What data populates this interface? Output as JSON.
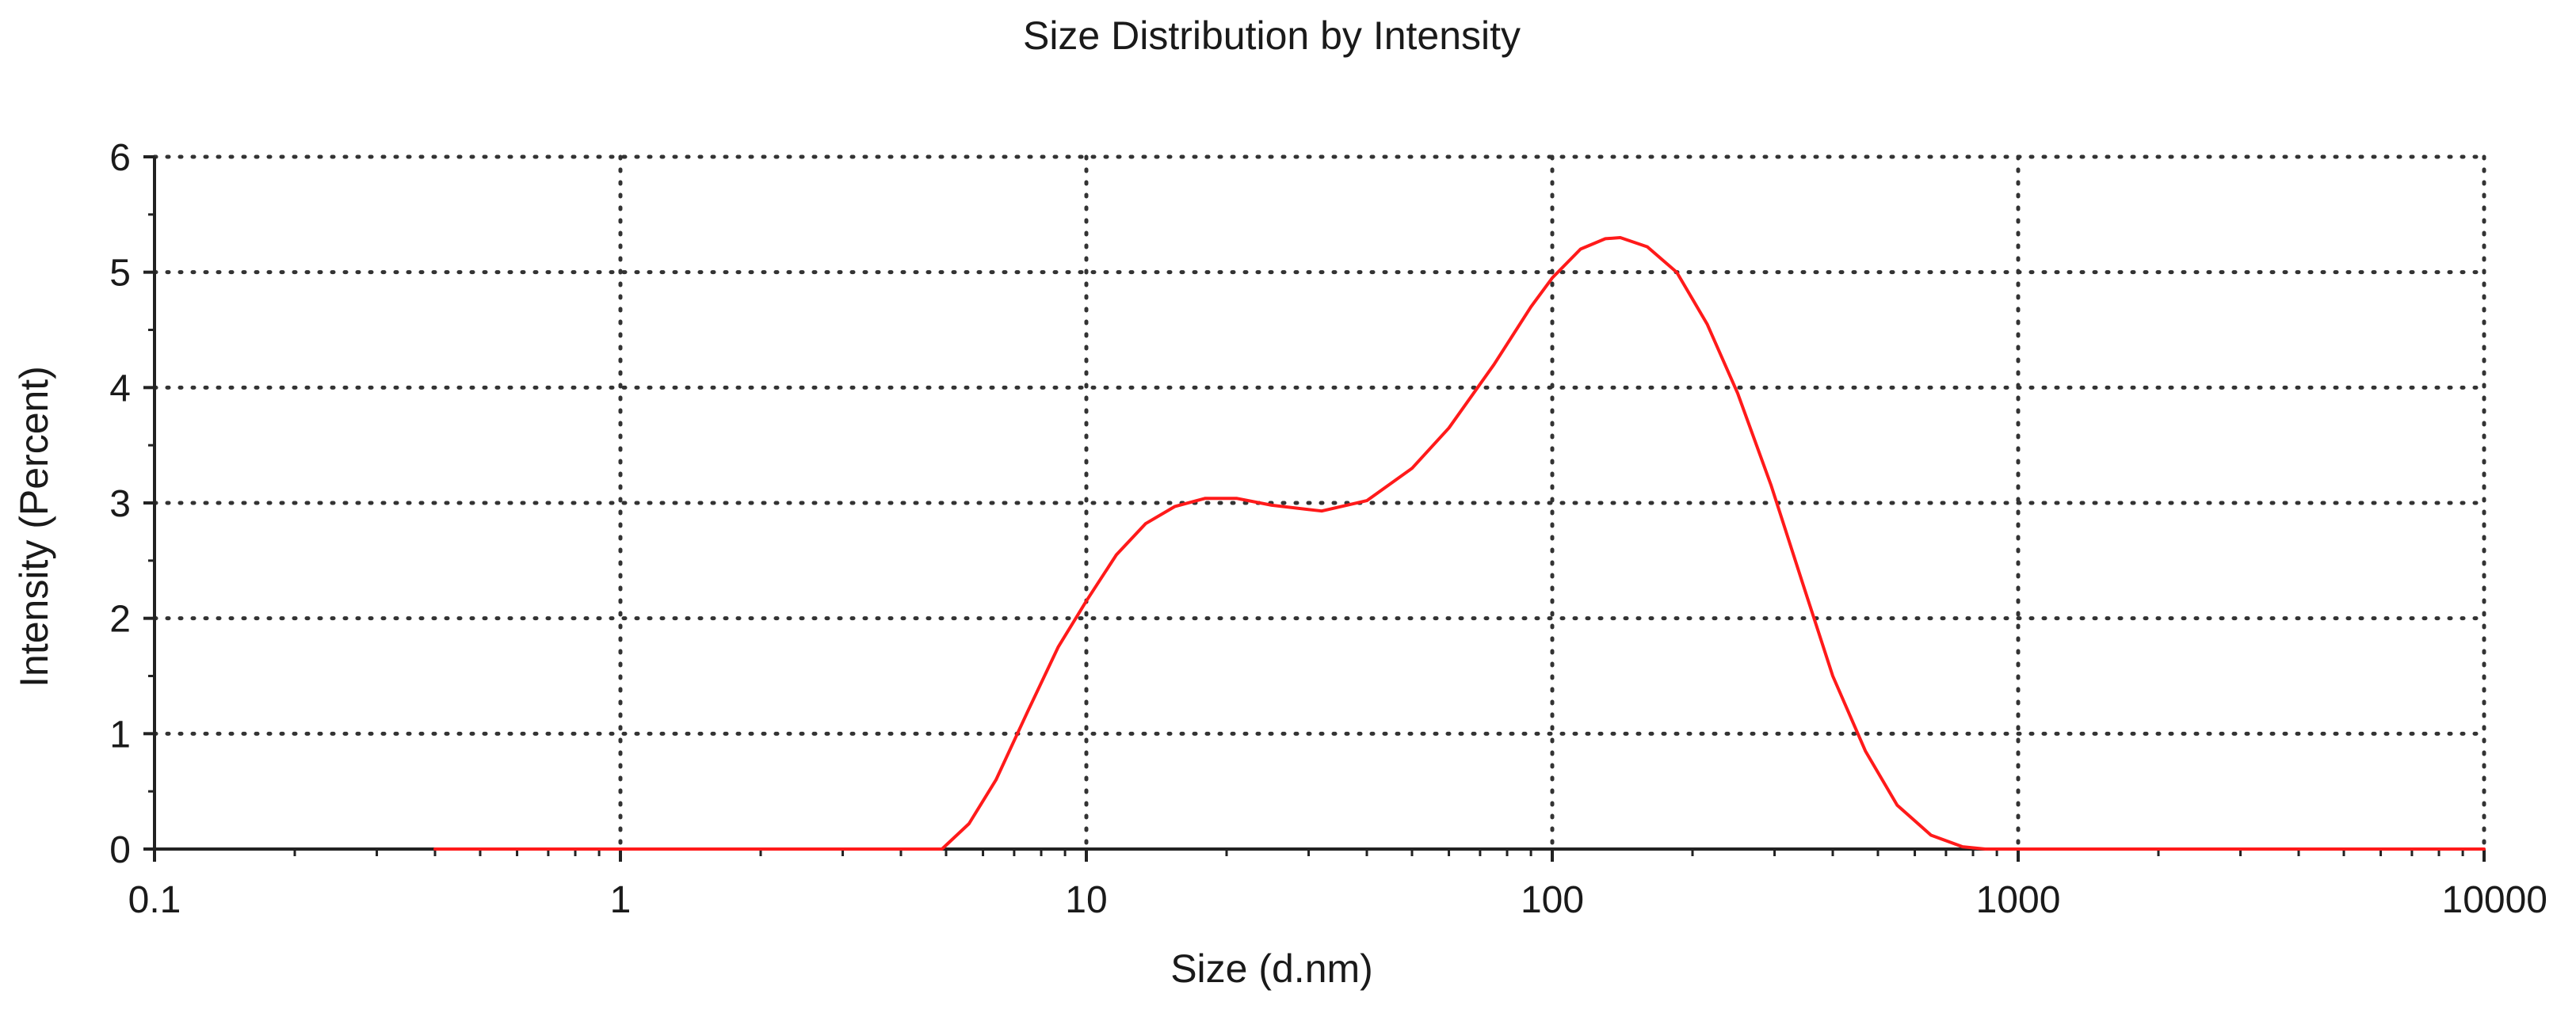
{
  "chart_data": {
    "type": "line",
    "title": "Size Distribution by Intensity",
    "xlabel": "Size (d.nm)",
    "ylabel": "Intensity (Percent)",
    "x_scale": "log",
    "xlim": [
      0.1,
      10000
    ],
    "ylim": [
      0,
      6
    ],
    "x_ticks": [
      "0.1",
      "1",
      "10",
      "100",
      "1000",
      "10000"
    ],
    "y_ticks": [
      "0",
      "1",
      "2",
      "3",
      "4",
      "5",
      "6"
    ],
    "grid": true,
    "grid_style": "dotted",
    "legend": "none",
    "series": [
      {
        "color": "#ff1a1a",
        "points": [
          [
            0.4,
            0.0
          ],
          [
            1.0,
            0.0
          ],
          [
            3.0,
            0.0
          ],
          [
            4.9,
            0.0
          ],
          [
            5.6,
            0.22
          ],
          [
            6.4,
            0.6
          ],
          [
            7.5,
            1.2
          ],
          [
            8.7,
            1.75
          ],
          [
            10.0,
            2.15
          ],
          [
            11.6,
            2.55
          ],
          [
            13.4,
            2.82
          ],
          [
            15.5,
            2.97
          ],
          [
            18.0,
            3.04
          ],
          [
            21.0,
            3.04
          ],
          [
            25.0,
            2.98
          ],
          [
            32.0,
            2.93
          ],
          [
            40.0,
            3.02
          ],
          [
            50.0,
            3.3
          ],
          [
            60.0,
            3.65
          ],
          [
            75.0,
            4.2
          ],
          [
            90.0,
            4.7
          ],
          [
            100.0,
            4.95
          ],
          [
            115.0,
            5.2
          ],
          [
            130.0,
            5.29
          ],
          [
            140.0,
            5.3
          ],
          [
            160.0,
            5.22
          ],
          [
            185.0,
            5.0
          ],
          [
            215.0,
            4.55
          ],
          [
            250.0,
            3.95
          ],
          [
            295.0,
            3.15
          ],
          [
            345.0,
            2.3
          ],
          [
            400.0,
            1.5
          ],
          [
            470.0,
            0.85
          ],
          [
            550.0,
            0.38
          ],
          [
            650.0,
            0.12
          ],
          [
            760.0,
            0.02
          ],
          [
            850.0,
            0.0
          ],
          [
            1000.0,
            0.0
          ],
          [
            3000.0,
            0.0
          ],
          [
            10000.0,
            0.0
          ]
        ]
      }
    ]
  }
}
